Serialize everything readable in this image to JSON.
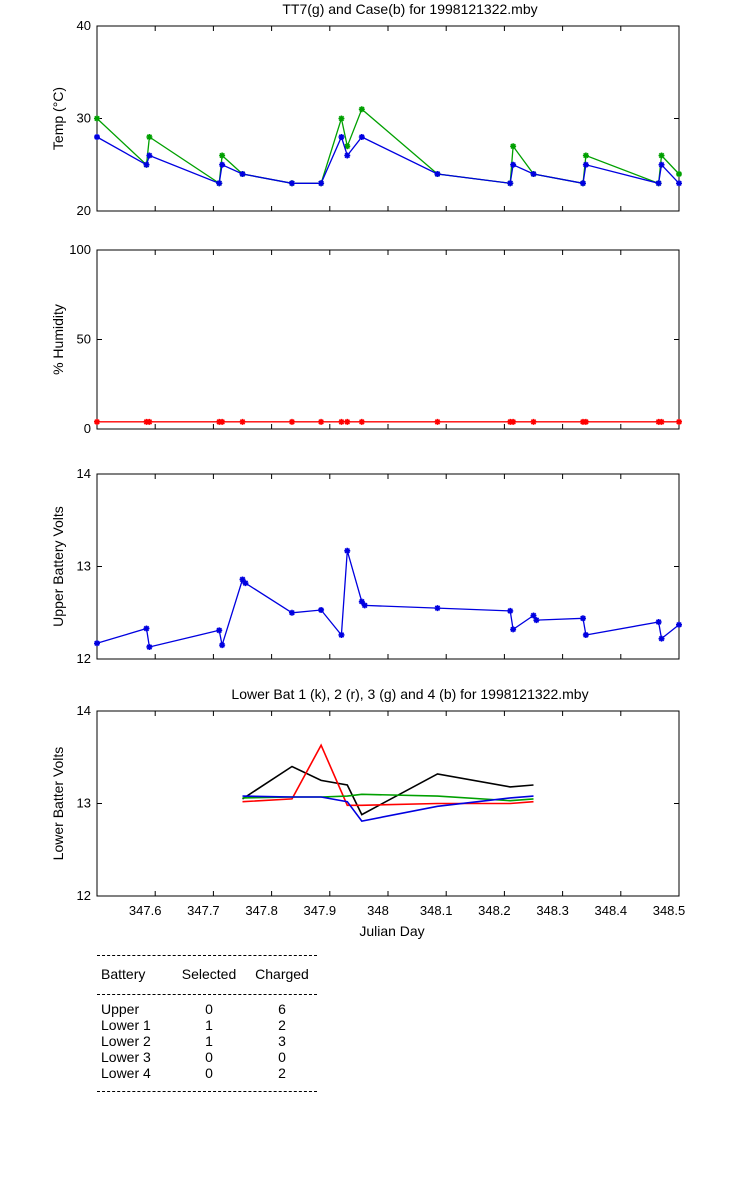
{
  "chart_data": [
    {
      "type": "line",
      "title": "TT7(g) and Case(b) for 1998121322.mby",
      "xlabel": "",
      "ylabel": "Temp  (°C)",
      "xlim": [
        347.5,
        348.5
      ],
      "ylim": [
        20,
        40
      ],
      "yticks": [
        "20",
        "30",
        "40"
      ],
      "grid": false,
      "series": [
        {
          "color": "#00a000",
          "x": [
            347.5,
            347.585,
            347.59,
            347.71,
            347.715,
            347.75,
            347.835,
            347.885,
            347.92,
            347.93,
            347.955,
            348.085,
            348.21,
            348.215,
            348.25,
            348.335,
            348.34,
            348.465,
            348.47,
            348.5
          ],
          "y": [
            30,
            25,
            28,
            23,
            26,
            24,
            23,
            23,
            30,
            27,
            31,
            24,
            23,
            27,
            24,
            23,
            26,
            23,
            26,
            24
          ]
        },
        {
          "color": "#0000e0",
          "x": [
            347.5,
            347.585,
            347.59,
            347.71,
            347.715,
            347.75,
            347.835,
            347.885,
            347.92,
            347.93,
            347.955,
            348.085,
            348.21,
            348.215,
            348.25,
            348.335,
            348.34,
            348.465,
            348.47,
            348.5
          ],
          "y": [
            28,
            25,
            26,
            23,
            25,
            24,
            23,
            23,
            28,
            26,
            28,
            24,
            23,
            25,
            24,
            23,
            25,
            23,
            25,
            23
          ]
        }
      ]
    },
    {
      "type": "line",
      "title": "",
      "xlabel": "",
      "ylabel": "% Humidity",
      "xlim": [
        347.5,
        348.5
      ],
      "ylim": [
        0,
        100
      ],
      "yticks": [
        "0",
        "50",
        "100"
      ],
      "grid": false,
      "series": [
        {
          "color": "#ff0000",
          "x": [
            347.5,
            347.585,
            347.59,
            347.71,
            347.715,
            347.75,
            347.835,
            347.885,
            347.92,
            347.93,
            347.955,
            348.085,
            348.21,
            348.215,
            348.25,
            348.335,
            348.34,
            348.465,
            348.47,
            348.5
          ],
          "y": [
            4,
            4,
            4,
            4,
            4,
            4,
            4,
            4,
            4,
            4,
            4,
            4,
            4,
            4,
            4,
            4,
            4,
            4,
            4,
            4
          ]
        }
      ]
    },
    {
      "type": "line",
      "title": "",
      "xlabel": "",
      "ylabel": "Upper Battery Volts",
      "xlim": [
        347.5,
        348.5
      ],
      "ylim": [
        12,
        14
      ],
      "yticks": [
        "12",
        "13",
        "14"
      ],
      "grid": false,
      "series": [
        {
          "color": "#0000e0",
          "x": [
            347.5,
            347.585,
            347.59,
            347.71,
            347.715,
            347.75,
            347.755,
            347.835,
            347.885,
            347.92,
            347.93,
            347.955,
            347.96,
            348.085,
            348.21,
            348.215,
            348.25,
            348.255,
            348.335,
            348.34,
            348.465,
            348.47,
            348.5
          ],
          "y": [
            12.17,
            12.33,
            12.13,
            12.31,
            12.15,
            12.86,
            12.82,
            12.5,
            12.53,
            12.26,
            13.17,
            12.62,
            12.58,
            12.55,
            12.52,
            12.32,
            12.47,
            12.42,
            12.44,
            12.26,
            12.4,
            12.22,
            12.37
          ]
        }
      ]
    },
    {
      "type": "line",
      "title": "Lower Bat 1 (k), 2 (r), 3 (g) and 4 (b) for 1998121322.mby",
      "xlabel": "Julian Day",
      "ylabel": "Lower Batter Volts",
      "xlim": [
        347.5,
        348.5
      ],
      "ylim": [
        12,
        14
      ],
      "yticks": [
        "12",
        "13",
        "14"
      ],
      "xticks": [
        347.6,
        347.7,
        347.8,
        347.9,
        348.0,
        348.1,
        348.2,
        348.3,
        348.4,
        348.5
      ],
      "xtick_labels": [
        "347.6",
        "347.7",
        "347.8",
        "347.9",
        "348",
        "348.1",
        "348.2",
        "348.3",
        "348.4",
        "348.5"
      ],
      "grid": false,
      "series": [
        {
          "color": "#000000",
          "x": [
            347.75,
            347.835,
            347.885,
            347.93,
            347.955,
            348.085,
            348.21,
            348.25
          ],
          "y": [
            13.05,
            13.4,
            13.25,
            13.2,
            12.88,
            13.32,
            13.18,
            13.2
          ]
        },
        {
          "color": "#ff0000",
          "x": [
            347.75,
            347.835,
            347.885,
            347.93,
            347.955,
            348.085,
            348.21,
            348.25
          ],
          "y": [
            13.02,
            13.05,
            13.63,
            12.98,
            12.98,
            13.0,
            13.0,
            13.02
          ]
        },
        {
          "color": "#00a000",
          "x": [
            347.75,
            347.835,
            347.885,
            347.93,
            347.955,
            348.085,
            348.21,
            348.25
          ],
          "y": [
            13.06,
            13.07,
            13.07,
            13.08,
            13.1,
            13.08,
            13.03,
            13.05
          ]
        },
        {
          "color": "#0000e0",
          "x": [
            347.75,
            347.835,
            347.885,
            347.93,
            347.955,
            348.085,
            348.21,
            348.25
          ],
          "y": [
            13.08,
            13.07,
            13.07,
            13.02,
            12.81,
            12.97,
            13.06,
            13.08
          ]
        }
      ]
    }
  ],
  "table": {
    "headers": [
      "Battery",
      "Selected",
      "Charged"
    ],
    "rows": [
      [
        "Upper",
        "0",
        "6"
      ],
      [
        "Lower 1",
        "1",
        "2"
      ],
      [
        "Lower 2",
        "1",
        "3"
      ],
      [
        "Lower 3",
        "0",
        "0"
      ],
      [
        "Lower 4",
        "0",
        "2"
      ]
    ]
  }
}
